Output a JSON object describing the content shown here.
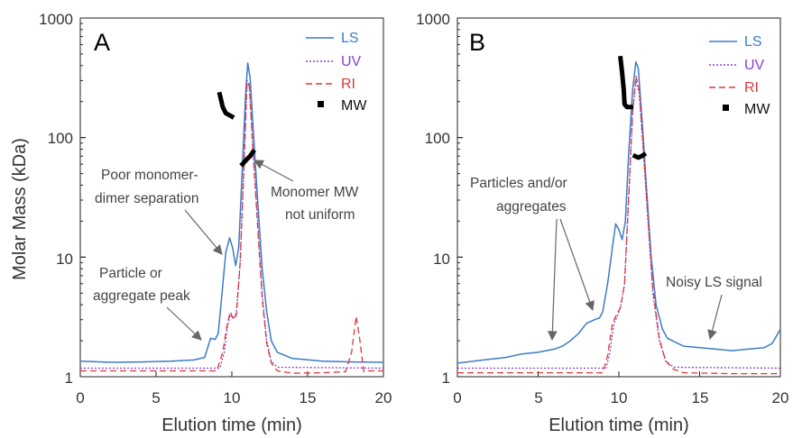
{
  "chart_data": [
    {
      "type": "line",
      "panel_label": "A",
      "xlabel": "Elution time (min)",
      "ylabel": "Molar Mass (kDa)",
      "xlim": [
        0,
        20
      ],
      "ylim": [
        1,
        1000
      ],
      "yscale": "log",
      "x_ticks": [
        "0",
        "5",
        "10",
        "15",
        "20"
      ],
      "y_ticks": [
        "1",
        "10",
        "100",
        "1000"
      ],
      "grid": false,
      "legend_position": "top-right",
      "colors": {
        "LS": "#3b7bc8",
        "UV": "#8b3fd6",
        "RI": "#d93a3a",
        "MW": "#000000"
      },
      "series": [
        {
          "name": "LS",
          "style": "solid",
          "points": [
            [
              0,
              1.35
            ],
            [
              2,
              1.32
            ],
            [
              4,
              1.33
            ],
            [
              6,
              1.35
            ],
            [
              7.5,
              1.38
            ],
            [
              8.2,
              1.45
            ],
            [
              8.6,
              2.1
            ],
            [
              8.9,
              2.05
            ],
            [
              9.1,
              2.3
            ],
            [
              9.35,
              5
            ],
            [
              9.6,
              11
            ],
            [
              9.85,
              14.5
            ],
            [
              10.05,
              12
            ],
            [
              10.25,
              8.5
            ],
            [
              10.45,
              12
            ],
            [
              10.7,
              60
            ],
            [
              10.9,
              220
            ],
            [
              11.05,
              420
            ],
            [
              11.2,
              320
            ],
            [
              11.45,
              95
            ],
            [
              11.7,
              30
            ],
            [
              12.0,
              8
            ],
            [
              12.3,
              3.5
            ],
            [
              12.6,
              2.0
            ],
            [
              13.0,
              1.6
            ],
            [
              14,
              1.42
            ],
            [
              16,
              1.35
            ],
            [
              18,
              1.33
            ],
            [
              20,
              1.32
            ]
          ]
        },
        {
          "name": "UV",
          "style": "dotted",
          "points": [
            [
              0,
              1.18
            ],
            [
              9.2,
              1.18
            ],
            [
              9.5,
              1.6
            ],
            [
              9.7,
              2.6
            ],
            [
              9.9,
              3.3
            ],
            [
              10.1,
              3.1
            ],
            [
              10.3,
              3.4
            ],
            [
              10.55,
              9
            ],
            [
              10.8,
              60
            ],
            [
              11.0,
              300
            ],
            [
              11.15,
              280
            ],
            [
              11.4,
              80
            ],
            [
              11.7,
              20
            ],
            [
              12.0,
              5
            ],
            [
              12.3,
              2.0
            ],
            [
              12.6,
              1.35
            ],
            [
              13.0,
              1.2
            ],
            [
              20,
              1.18
            ]
          ]
        },
        {
          "name": "RI",
          "style": "dashed",
          "points": [
            [
              0,
              1.12
            ],
            [
              9.0,
              1.12
            ],
            [
              9.4,
              1.6
            ],
            [
              9.7,
              2.8
            ],
            [
              9.9,
              3.5
            ],
            [
              10.1,
              3.0
            ],
            [
              10.3,
              3.3
            ],
            [
              10.55,
              9
            ],
            [
              10.8,
              55
            ],
            [
              11.0,
              290
            ],
            [
              11.15,
              270
            ],
            [
              11.4,
              75
            ],
            [
              11.7,
              18
            ],
            [
              12.0,
              4.5
            ],
            [
              12.3,
              1.9
            ],
            [
              12.6,
              1.3
            ],
            [
              13.0,
              1.12
            ],
            [
              14,
              1.07
            ],
            [
              16,
              1.08
            ],
            [
              17.5,
              1.1
            ],
            [
              17.9,
              1.6
            ],
            [
              18.2,
              3.2
            ],
            [
              18.45,
              2.0
            ],
            [
              18.7,
              1.1
            ],
            [
              19,
              1.12
            ],
            [
              20,
              1.12
            ]
          ]
        }
      ],
      "mw_segments": [
        [
          [
            9.2,
            230
          ],
          [
            9.4,
            180
          ],
          [
            9.6,
            160
          ],
          [
            9.8,
            155
          ],
          [
            10.0,
            150
          ]
        ],
        [
          [
            10.7,
            60
          ],
          [
            10.85,
            63
          ],
          [
            11.0,
            66
          ],
          [
            11.2,
            70
          ],
          [
            11.4,
            76
          ]
        ]
      ],
      "legend": [
        "LS",
        "UV",
        "RI",
        "MW"
      ],
      "annotations": [
        {
          "lines": [
            "Poor monomer-",
            "dimer separation"
          ]
        },
        {
          "lines": [
            "Monomer MW",
            "not uniform"
          ]
        },
        {
          "lines": [
            "Particle or",
            "aggregate peak"
          ]
        }
      ]
    },
    {
      "type": "line",
      "panel_label": "B",
      "xlabel": "Elution time (min)",
      "ylabel": "",
      "xlim": [
        0,
        20
      ],
      "ylim": [
        1,
        1000
      ],
      "yscale": "log",
      "x_ticks": [
        "0",
        "5",
        "10",
        "15",
        "20"
      ],
      "y_ticks": [
        "1",
        "10",
        "100",
        "1000"
      ],
      "grid": false,
      "legend_position": "top-right",
      "colors": {
        "LS": "#3b7bc8",
        "UV": "#8b3fd6",
        "RI": "#d93a3a",
        "MW": "#000000"
      },
      "series": [
        {
          "name": "LS",
          "style": "solid",
          "points": [
            [
              0,
              1.3
            ],
            [
              1,
              1.35
            ],
            [
              2,
              1.4
            ],
            [
              3,
              1.45
            ],
            [
              4,
              1.55
            ],
            [
              5,
              1.6
            ],
            [
              6,
              1.7
            ],
            [
              6.5,
              1.8
            ],
            [
              7,
              2.0
            ],
            [
              7.5,
              2.3
            ],
            [
              8,
              2.8
            ],
            [
              8.5,
              3.0
            ],
            [
              8.8,
              3.1
            ],
            [
              9.0,
              3.5
            ],
            [
              9.3,
              6
            ],
            [
              9.6,
              12
            ],
            [
              9.8,
              19
            ],
            [
              10.0,
              17
            ],
            [
              10.2,
              14
            ],
            [
              10.4,
              20
            ],
            [
              10.6,
              70
            ],
            [
              10.85,
              250
            ],
            [
              11.05,
              430
            ],
            [
              11.2,
              380
            ],
            [
              11.45,
              130
            ],
            [
              11.7,
              40
            ],
            [
              12.0,
              10
            ],
            [
              12.3,
              4
            ],
            [
              12.7,
              2.5
            ],
            [
              13.0,
              2.1
            ],
            [
              14,
              1.8
            ],
            [
              15,
              1.75
            ],
            [
              16,
              1.7
            ],
            [
              17,
              1.65
            ],
            [
              18,
              1.7
            ],
            [
              19,
              1.75
            ],
            [
              19.5,
              1.9
            ],
            [
              20,
              2.5
            ]
          ]
        },
        {
          "name": "UV",
          "style": "dotted",
          "points": [
            [
              0,
              1.18
            ],
            [
              9.2,
              1.18
            ],
            [
              9.4,
              1.5
            ],
            [
              9.7,
              2.8
            ],
            [
              9.9,
              3.2
            ],
            [
              10.1,
              3.8
            ],
            [
              10.35,
              6
            ],
            [
              10.6,
              30
            ],
            [
              10.85,
              160
            ],
            [
              11.05,
              300
            ],
            [
              11.25,
              240
            ],
            [
              11.5,
              80
            ],
            [
              11.8,
              20
            ],
            [
              12.1,
              5
            ],
            [
              12.5,
              2.0
            ],
            [
              12.9,
              1.35
            ],
            [
              13.4,
              1.2
            ],
            [
              20,
              1.18
            ]
          ]
        },
        {
          "name": "RI",
          "style": "dashed",
          "points": [
            [
              0,
              1.08
            ],
            [
              9.0,
              1.08
            ],
            [
              9.3,
              1.5
            ],
            [
              9.6,
              2.8
            ],
            [
              9.9,
              3.4
            ],
            [
              10.1,
              3.8
            ],
            [
              10.35,
              6
            ],
            [
              10.6,
              30
            ],
            [
              10.85,
              160
            ],
            [
              11.05,
              330
            ],
            [
              11.25,
              260
            ],
            [
              11.5,
              85
            ],
            [
              11.8,
              22
            ],
            [
              12.1,
              5.5
            ],
            [
              12.5,
              2.1
            ],
            [
              12.9,
              1.35
            ],
            [
              13.4,
              1.15
            ],
            [
              14,
              1.08
            ],
            [
              17,
              1.06
            ],
            [
              20,
              1.06
            ]
          ]
        }
      ],
      "mw_segments": [
        [
          [
            10.1,
            460
          ],
          [
            10.2,
            350
          ],
          [
            10.3,
            250
          ],
          [
            10.35,
            190
          ],
          [
            10.5,
            180
          ],
          [
            10.75,
            180
          ]
        ],
        [
          [
            11.0,
            70
          ],
          [
            11.2,
            68
          ],
          [
            11.4,
            70
          ],
          [
            11.55,
            72
          ]
        ]
      ],
      "legend": [
        "LS",
        "UV",
        "RI",
        "MW"
      ],
      "annotations": [
        {
          "lines": [
            "Particles and/or",
            "aggregates"
          ]
        },
        {
          "lines": [
            "Noisy LS signal"
          ]
        }
      ]
    }
  ]
}
